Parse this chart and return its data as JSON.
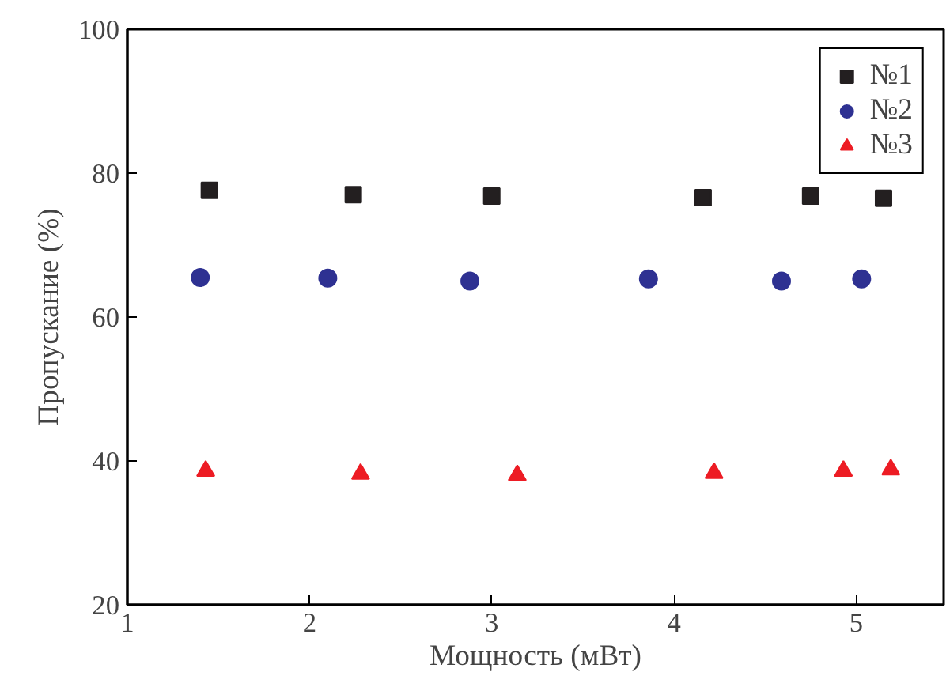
{
  "chart_data": {
    "type": "scatter",
    "xlabel": "Мощность (мВт)",
    "ylabel": "Пропускание (%)",
    "xlim": [
      1,
      5.48
    ],
    "ylim": [
      20,
      100
    ],
    "xticks": [
      1,
      2,
      3,
      4,
      5
    ],
    "yticks": [
      20,
      40,
      60,
      80,
      100
    ],
    "grid": false,
    "legend": "top right",
    "series": [
      {
        "name": "№1",
        "color": "#231f20",
        "marker": "square",
        "x": [
          1.45,
          2.24,
          3.0,
          4.16,
          4.75,
          5.15
        ],
        "values": [
          77.6,
          77.0,
          76.8,
          76.6,
          76.8,
          76.5
        ]
      },
      {
        "name": "№2",
        "color": "#2e3192",
        "marker": "circle",
        "x": [
          1.4,
          2.1,
          2.88,
          3.86,
          4.59,
          5.03
        ],
        "values": [
          65.5,
          65.4,
          65.0,
          65.3,
          65.0,
          65.3
        ]
      },
      {
        "name": "№3",
        "color": "#ed1c24",
        "marker": "triangle",
        "x": [
          1.43,
          2.28,
          3.14,
          4.22,
          4.93,
          5.19
        ],
        "values": [
          38.6,
          38.2,
          38.0,
          38.3,
          38.6,
          38.8
        ]
      }
    ]
  }
}
